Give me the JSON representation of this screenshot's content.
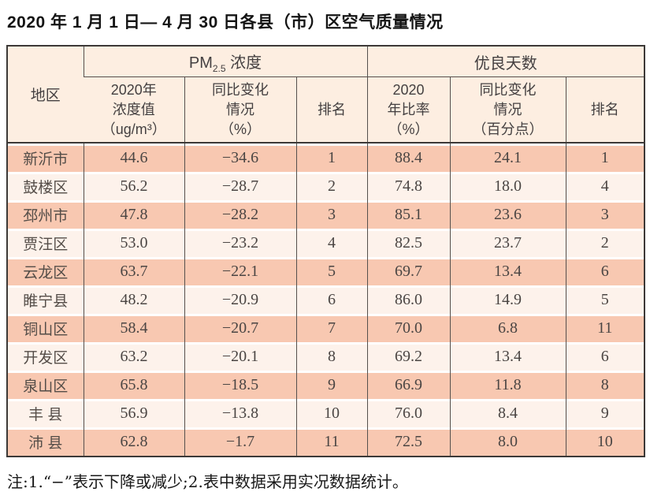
{
  "title": "2020 年 1 月 1 日— 4 月 30 日各县（市）区空气质量情况",
  "note": "注:1.“−”表示下降或减少;2.表中数据采用实况数据统计。",
  "colors": {
    "row_odd": "#f8c8b1",
    "row_even": "#fdf2eb",
    "header_bg": "#fdeee1",
    "border_dark": "#3c3937"
  },
  "table": {
    "region_header": "地区",
    "pm_group": {
      "prefix": "PM",
      "sub": "2.5",
      "suffix": " 浓度"
    },
    "good_group": "优良天数",
    "cols": {
      "pm_value": [
        "2020年",
        "浓度值",
        "（ug/m³）"
      ],
      "pm_change": [
        "同比变化",
        "情况",
        "（%）"
      ],
      "pm_rank": [
        "排名"
      ],
      "good_rate": [
        "2020",
        "年比率",
        "（%）"
      ],
      "good_change": [
        "同比变化",
        "情况",
        "（百分点）"
      ],
      "good_rank": [
        "排名"
      ]
    },
    "rows": [
      {
        "region": "新沂市",
        "pm_value": "44.6",
        "pm_change": "−34.6",
        "pm_rank": "1",
        "good_rate": "88.4",
        "good_change": "24.1",
        "good_rank": "1"
      },
      {
        "region": "鼓楼区",
        "pm_value": "56.2",
        "pm_change": "−28.7",
        "pm_rank": "2",
        "good_rate": "74.8",
        "good_change": "18.0",
        "good_rank": "4"
      },
      {
        "region": "邳州市",
        "pm_value": "47.8",
        "pm_change": "−28.2",
        "pm_rank": "3",
        "good_rate": "85.1",
        "good_change": "23.6",
        "good_rank": "3"
      },
      {
        "region": "贾汪区",
        "pm_value": "53.0",
        "pm_change": "−23.2",
        "pm_rank": "4",
        "good_rate": "82.5",
        "good_change": "23.7",
        "good_rank": "2"
      },
      {
        "region": "云龙区",
        "pm_value": "63.7",
        "pm_change": "−22.1",
        "pm_rank": "5",
        "good_rate": "69.7",
        "good_change": "13.4",
        "good_rank": "6"
      },
      {
        "region": "睢宁县",
        "pm_value": "48.2",
        "pm_change": "−20.9",
        "pm_rank": "6",
        "good_rate": "86.0",
        "good_change": "14.9",
        "good_rank": "5"
      },
      {
        "region": "铜山区",
        "pm_value": "58.4",
        "pm_change": "−20.7",
        "pm_rank": "7",
        "good_rate": "70.0",
        "good_change": "6.8",
        "good_rank": "11"
      },
      {
        "region": "开发区",
        "pm_value": "63.2",
        "pm_change": "−20.1",
        "pm_rank": "8",
        "good_rate": "69.2",
        "good_change": "13.4",
        "good_rank": "6"
      },
      {
        "region": "泉山区",
        "pm_value": "65.8",
        "pm_change": "−18.5",
        "pm_rank": "9",
        "good_rate": "66.9",
        "good_change": "11.8",
        "good_rank": "8"
      },
      {
        "region": "丰 县",
        "pm_value": "56.9",
        "pm_change": "−13.8",
        "pm_rank": "10",
        "good_rate": "76.0",
        "good_change": "8.4",
        "good_rank": "9"
      },
      {
        "region": "沛 县",
        "pm_value": "62.8",
        "pm_change": "−1.7",
        "pm_rank": "11",
        "good_rate": "72.5",
        "good_change": "8.0",
        "good_rank": "10"
      }
    ]
  }
}
